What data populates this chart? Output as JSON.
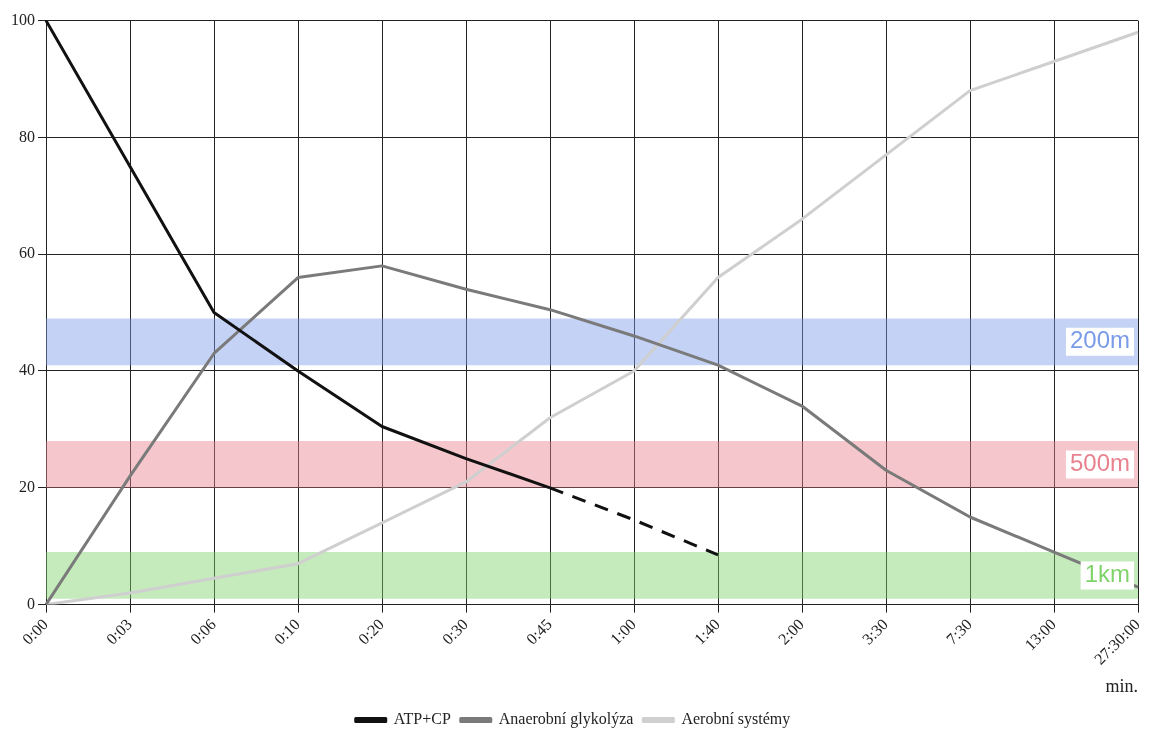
{
  "chart_data": {
    "type": "line",
    "xlabel": "min.",
    "categories": [
      "0:00",
      "0:03",
      "0:06",
      "0:10",
      "0:20",
      "0:30",
      "0:45",
      "1:00",
      "1:40",
      "2:00",
      "3:30",
      "7:30",
      "13:00",
      "27:30:00"
    ],
    "series": [
      {
        "name": "ATP+CP",
        "color": "#111111",
        "values": [
          100,
          75,
          50,
          40,
          30.5,
          25,
          20,
          null,
          null,
          null,
          null,
          null,
          null,
          null
        ]
      },
      {
        "color": "#111111",
        "line_style": "dashed",
        "values": [
          null,
          null,
          null,
          null,
          null,
          null,
          20,
          14.5,
          8.5,
          null,
          null,
          null,
          null,
          null
        ]
      },
      {
        "name": "Anaerobní glykolýza",
        "color": "#7a7a7a",
        "values": [
          0,
          22,
          43,
          56,
          58,
          54,
          50.5,
          46,
          41,
          34,
          23,
          15,
          9,
          3
        ]
      },
      {
        "name": "Aerobní systémy",
        "color": "#cfcfcf",
        "values": [
          0,
          2,
          4.5,
          7,
          14,
          21,
          32,
          40,
          56,
          66,
          77,
          88,
          93,
          98
        ]
      }
    ],
    "ylim": [
      0,
      100
    ],
    "yticks": [
      0,
      20,
      40,
      60,
      80,
      100
    ],
    "grid": true,
    "legend": "bottom",
    "marker": "none",
    "line_style": "solid",
    "bands": [
      {
        "axis": "y",
        "from": 41,
        "to": 49,
        "label": "200m",
        "color": "#7a9be8"
      },
      {
        "axis": "y",
        "from": 20,
        "to": 28,
        "label": "500m",
        "color": "#e8828f"
      },
      {
        "axis": "y",
        "from": 1,
        "to": 9,
        "label": "1km",
        "color": "#7fd36a"
      }
    ]
  }
}
